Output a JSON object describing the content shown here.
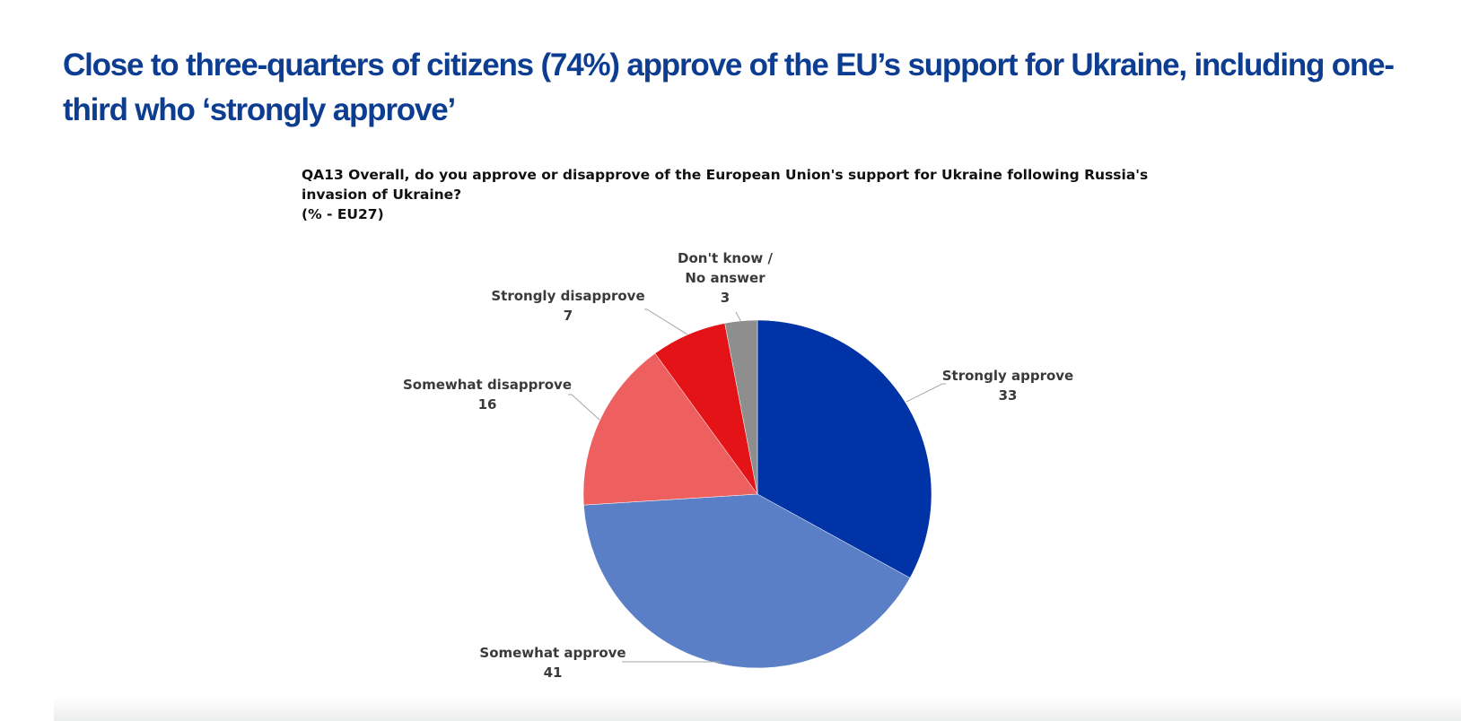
{
  "headline": "Close to three-quarters of citizens (74%) approve of the EU’s support for Ukraine, including one-third who ‘strongly approve’",
  "question": {
    "line1": "QA13  Overall, do you approve or disapprove of the European Union's support for Ukraine following Russia's",
    "line2": "invasion of Ukraine?",
    "line3": "(% - EU27)"
  },
  "chart_data": {
    "type": "pie",
    "title": "QA13  Overall, do you approve or disapprove of the European Union's support for Ukraine following Russia's invasion of Ukraine?",
    "subtitle": "(% - EU27)",
    "legend": "none",
    "slices": [
      {
        "key": "strongly-approve",
        "label_lines": [
          "Strongly approve"
        ],
        "value": 33,
        "value_text": "33",
        "color": "#0033a5"
      },
      {
        "key": "somewhat-approve",
        "label_lines": [
          "Somewhat approve"
        ],
        "value": 41,
        "value_text": "41",
        "color": "#5b7fc7"
      },
      {
        "key": "somewhat-disapprove",
        "label_lines": [
          "Somewhat disapprove"
        ],
        "value": 16,
        "value_text": "16",
        "color": "#ee5f5f"
      },
      {
        "key": "strongly-disapprove",
        "label_lines": [
          "Strongly disapprove"
        ],
        "value": 7,
        "value_text": "7",
        "color": "#e41317"
      },
      {
        "key": "dont-know",
        "label_lines": [
          "Don't know /",
          "No answer"
        ],
        "value": 3,
        "value_text": "3",
        "color": "#8e8e8e"
      }
    ]
  }
}
